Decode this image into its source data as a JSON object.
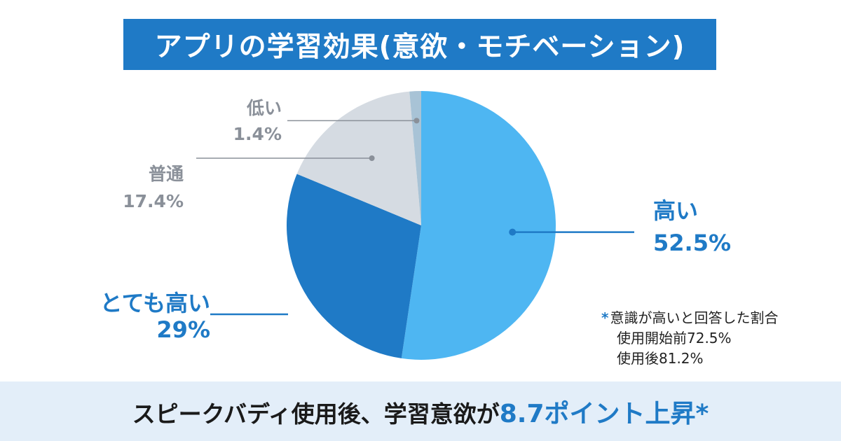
{
  "title": "アプリの学習効果(意欲・モチベーション)",
  "chart_data": {
    "type": "pie",
    "start_angle_deg": 0,
    "direction": "clockwise",
    "slices": [
      {
        "label": "高い",
        "value": 52.5,
        "value_label": "52.5%",
        "color": "#4eb6f2",
        "label_color": "#1f7ac6"
      },
      {
        "label": "とても高い",
        "value": 29,
        "value_label": "29%",
        "color": "#1f7ac6",
        "label_color": "#1f7ac6"
      },
      {
        "label": "普通",
        "value": 17.4,
        "value_label": "17.4%",
        "color": "#d5dbe2",
        "label_color": "#8a9099"
      },
      {
        "label": "低い",
        "value": 1.4,
        "value_label": "1.4%",
        "color": "#a8c3d6",
        "label_color": "#8a9099"
      }
    ]
  },
  "note": {
    "star": "*",
    "line1": "意識が高いと回答した割合",
    "line2": "使用開始前72.5%",
    "line3": "使用後81.2%"
  },
  "bottom": {
    "prefix": "スピークバディ使用後、学習意欲が",
    "highlight": "8.7ポイント上昇*"
  }
}
